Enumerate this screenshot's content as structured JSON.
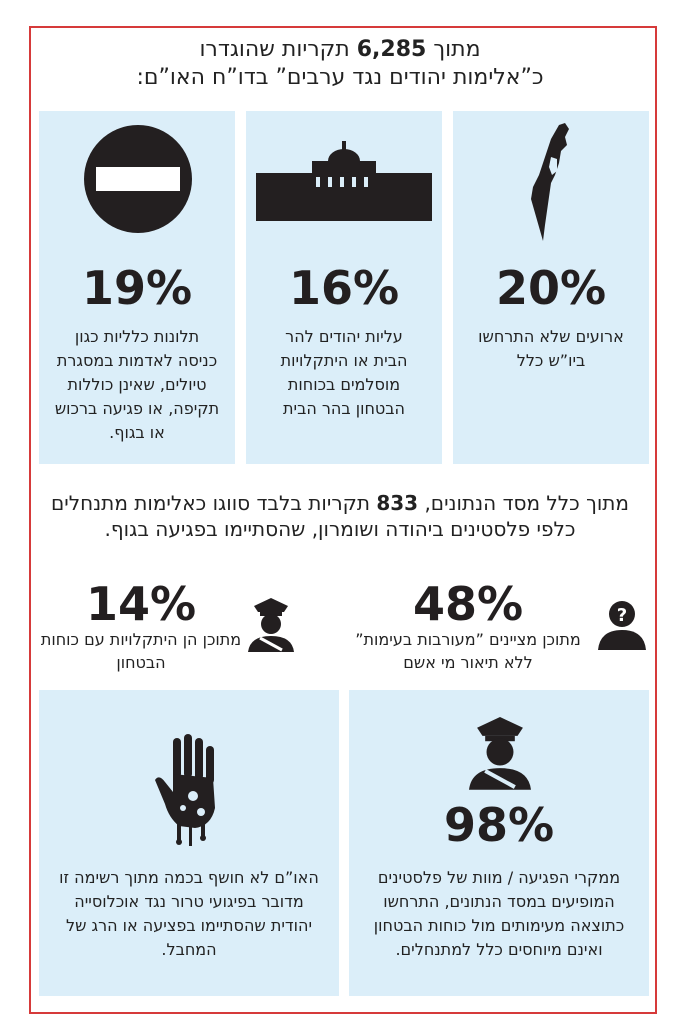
{
  "header": {
    "line1_prefix": "מתוך",
    "line1_number": "6,285",
    "line1_suffix": "תקריות שהוגדרו",
    "line2": "כ”אלימות יהודים נגד ערבים” בדו”ח האו”ם:"
  },
  "top_panels": [
    {
      "percent": "20%",
      "text": "ארועים שלא התרחשו ביו”ש כלל",
      "icon": "israel-map-icon"
    },
    {
      "percent": "16%",
      "text": "עליות יהודים להר הבית או היתקלויות מוסלמים בכוחות הבטחון בהר הבית",
      "icon": "temple-mount-icon"
    },
    {
      "percent": "19%",
      "text": "תלונות כלליות כגון כניסה לאדמות במסגרת טיולים, שאינן כוללות תקיפה, או פגיעה ברכוש או בגוף.",
      "icon": "no-entry-icon"
    }
  ],
  "middle": {
    "prefix": "מתוך כלל מסד הנתונים,",
    "number": "833",
    "suffix": "תקריות בלבד סווגו כאלימות מתנחלים כלפי פלסטינים ביהודה ושומרון, שהסתיימו בפגיעה בגוף."
  },
  "stats": [
    {
      "percent": "48%",
      "text": "מתוכן מציינים ”מעורבות בעימות” ללא תיאור מי אשם",
      "icon": "unknown-person-icon"
    },
    {
      "percent": "14%",
      "text": "מתוכן הן היתקלויות עם כוחות הבטחון",
      "icon": "police-officer-icon"
    }
  ],
  "bottom_panels": [
    {
      "percent": "98%",
      "text": "ממקרי הפגיעה / מוות של פלסטינים המופיעים במסד הנתונים, התרחשו כתוצאה מעימותים מול כוחות הבטחון ואינם מיוחסים כלל למתנחלים.",
      "icon": "police-officer-icon"
    },
    {
      "text": "האו”ם לא חושף בכמה מתוך רשימה זו מדובר בפיגועי טרור נגד אוכלוסייה יהודית שהסתיימו בפציעה או הרג של המחבל.",
      "icon": "bloody-hand-icon"
    }
  ],
  "colors": {
    "panel": "#dbeef9",
    "frame": "#d63a3a",
    "text": "#231f20"
  }
}
